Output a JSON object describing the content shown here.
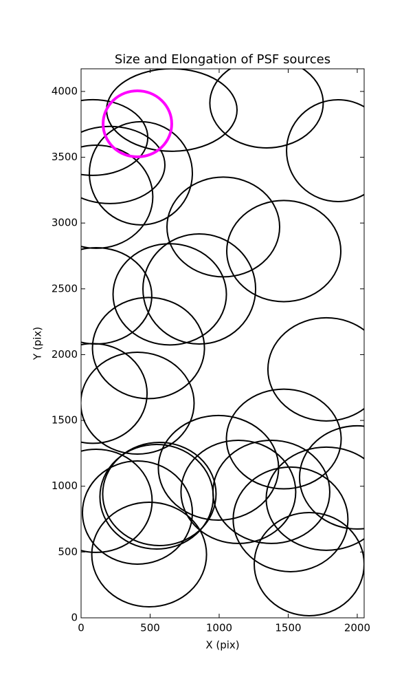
{
  "chart_data": {
    "type": "ellipse",
    "title": "Size and Elongation of PSF sources",
    "x_label": "X (pix)",
    "y_label": "Y (pix)",
    "xlim": [
      0,
      2050
    ],
    "ylim": [
      0,
      4172
    ],
    "xticks": [
      0,
      500,
      1000,
      1500,
      2000
    ],
    "yticks": [
      0,
      500,
      1000,
      1500,
      2000,
      2500,
      3000,
      3500,
      4000
    ],
    "series": [
      {
        "color": "#000000",
        "x": [
          657,
          1343,
          1861,
          85,
          209,
          433,
          109,
          1030,
          1468,
          109,
          642,
          856,
          488,
          1776,
          85,
          408,
          995,
          1468,
          109,
          567,
          547,
          408,
          1139,
          1378,
          2000,
          1776,
          1517,
          493,
          1652
        ],
        "y": [
          3859,
          3911,
          3550,
          3650,
          3441,
          3378,
          3200,
          2970,
          2787,
          2447,
          2458,
          2499,
          2050,
          1888,
          1705,
          1631,
          1140,
          1359,
          889,
          941,
          920,
          800,
          957,
          957,
          1067,
          905,
          748,
          481,
          408
        ],
        "width": [
          945,
          821,
          746,
          796,
          796,
          746,
          821,
          816,
          826,
          806,
          821,
          816,
          811,
          846,
          786,
          821,
          871,
          831,
          811,
          821,
          821,
          796,
          831,
          846,
          836,
          871,
          831,
          831,
          796
        ],
        "height": [
          627,
          680,
          774,
          575,
          586,
          784,
          784,
          758,
          769,
          732,
          769,
          837,
          769,
          784,
          758,
          774,
          795,
          758,
          784,
          784,
          795,
          784,
          784,
          784,
          784,
          784,
          795,
          795,
          784
        ]
      },
      {
        "color": "#ff00ff",
        "x": [
          408
        ],
        "y": [
          3754
        ],
        "width": [
          497
        ],
        "height": [
          502
        ]
      }
    ]
  }
}
